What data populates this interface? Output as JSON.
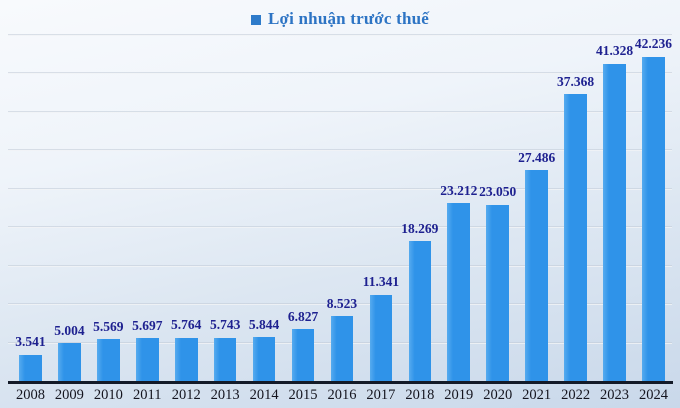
{
  "legend": {
    "label": "Lợi nhuận trước thuế"
  },
  "colors": {
    "bar": "#2f93e9",
    "bar_highlight": "#56abef",
    "value_label": "#1e2190",
    "tick_label": "#14141e",
    "legend_text": "#2d74c4",
    "legend_marker": "#2e7bca",
    "axis_line": "#131a28"
  },
  "chart_data": {
    "type": "bar",
    "title": "Lợi nhuận trước thuế",
    "series_name": "Lợi nhuận trước thuế",
    "categories": [
      "2008",
      "2009",
      "2010",
      "2011",
      "2012",
      "2013",
      "2014",
      "2015",
      "2016",
      "2017",
      "2018",
      "2019",
      "2020",
      "2021",
      "2022",
      "2023",
      "2024"
    ],
    "values": [
      3.541,
      5.004,
      5.569,
      5.697,
      5.764,
      5.743,
      5.844,
      6.827,
      8.523,
      11.341,
      18.269,
      23.212,
      23.05,
      27.486,
      37.368,
      41.328,
      42.236
    ],
    "value_labels": [
      "3.541",
      "5.004",
      "5.569",
      "5.697",
      "5.764",
      "5.743",
      "5.844",
      "6.827",
      "8.523",
      "11.341",
      "18.269",
      "23.212",
      "23.050",
      "27.486",
      "37.368",
      "41.328",
      "42.236"
    ],
    "xlabel": "",
    "ylabel": "",
    "ylim": [
      0,
      45
    ],
    "gridline_step": 5,
    "grid": "horizontal",
    "legend_position": "top-center",
    "data_labels": "above-bars"
  }
}
